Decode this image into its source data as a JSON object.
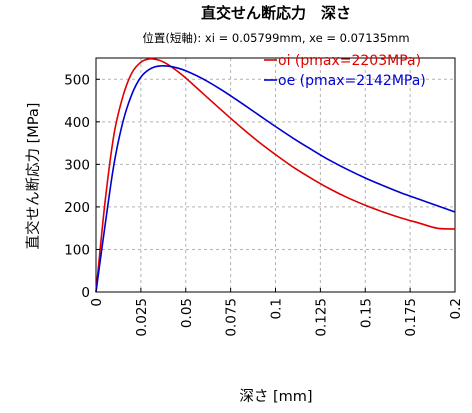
{
  "chart_data": {
    "type": "line",
    "title": "直交せん断応力　深さ",
    "subtitle": "位置(短軸): xi = 0.05799mm, xe = 0.07135mm",
    "xlabel": "深さ [mm]",
    "ylabel": "直交せん断応力 [MPa]",
    "xlim": [
      0,
      0.2
    ],
    "ylim": [
      0,
      550
    ],
    "xticks": [
      "0",
      "0.025",
      "0.05",
      "0.075",
      "0.1",
      "0.125",
      "0.15",
      "0.175",
      "0.2"
    ],
    "yticks": [
      "0",
      "100",
      "200",
      "300",
      "400",
      "500"
    ],
    "grid": true,
    "legend_position": "top-right",
    "series": [
      {
        "name": "oi (pmax=2203MPa)",
        "color": "#e00000",
        "x": [
          0,
          0.005,
          0.01,
          0.015,
          0.02,
          0.025,
          0.03,
          0.035,
          0.04,
          0.045,
          0.05,
          0.06,
          0.07,
          0.08,
          0.09,
          0.1,
          0.11,
          0.12,
          0.13,
          0.14,
          0.15,
          0.16,
          0.17,
          0.18,
          0.19,
          0.2
        ],
        "y": [
          0,
          210,
          370,
          460,
          515,
          540,
          548,
          545,
          535,
          520,
          503,
          465,
          427,
          390,
          355,
          323,
          293,
          267,
          243,
          222,
          204,
          188,
          174,
          162,
          150,
          148
        ]
      },
      {
        "name": "oe (pmax=2142MPa)",
        "color": "#0000d0",
        "x": [
          0,
          0.005,
          0.01,
          0.015,
          0.02,
          0.025,
          0.03,
          0.035,
          0.04,
          0.045,
          0.05,
          0.06,
          0.07,
          0.08,
          0.09,
          0.1,
          0.11,
          0.12,
          0.13,
          0.14,
          0.15,
          0.16,
          0.17,
          0.18,
          0.19,
          0.2
        ],
        "y": [
          0,
          155,
          300,
          400,
          465,
          505,
          524,
          531,
          531,
          527,
          520,
          500,
          475,
          447,
          418,
          389,
          361,
          335,
          310,
          288,
          268,
          250,
          233,
          218,
          203,
          188
        ]
      }
    ]
  }
}
